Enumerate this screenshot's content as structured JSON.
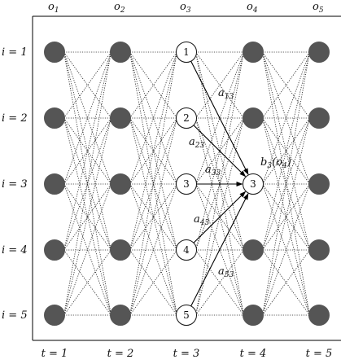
{
  "observations": [
    "o_1",
    "o_2",
    "o_3",
    "o_4",
    "o_5"
  ],
  "observation_labels": [
    {
      "base": "o",
      "sub": "1"
    },
    {
      "base": "o",
      "sub": "2"
    },
    {
      "base": "o",
      "sub": "3"
    },
    {
      "base": "o",
      "sub": "4"
    },
    {
      "base": "o",
      "sub": "5"
    }
  ],
  "state_labels": [
    "i = 1",
    "i = 2",
    "i = 3",
    "i = 4",
    "i = 5"
  ],
  "time_labels": [
    "t = 1",
    "t = 2",
    "t = 3",
    "t = 4",
    "t = 5"
  ],
  "highlight_column_node_labels": [
    "1",
    "2",
    "3",
    "4",
    "5"
  ],
  "target_node_label": "3",
  "transition_labels": [
    {
      "base": "a",
      "sub": "13"
    },
    {
      "base": "a",
      "sub": "23"
    },
    {
      "base": "a",
      "sub": "33"
    },
    {
      "base": "a",
      "sub": "43"
    },
    {
      "base": "a",
      "sub": "53"
    }
  ],
  "emission_label": {
    "base": "b",
    "sub": "3",
    "arg": "(o",
    "argsub": "4",
    "close": ")"
  },
  "colors": {
    "filled_node": "#555555",
    "node_stroke": "#111111",
    "edge_dotted": "#222222",
    "arrow": "#000000"
  }
}
